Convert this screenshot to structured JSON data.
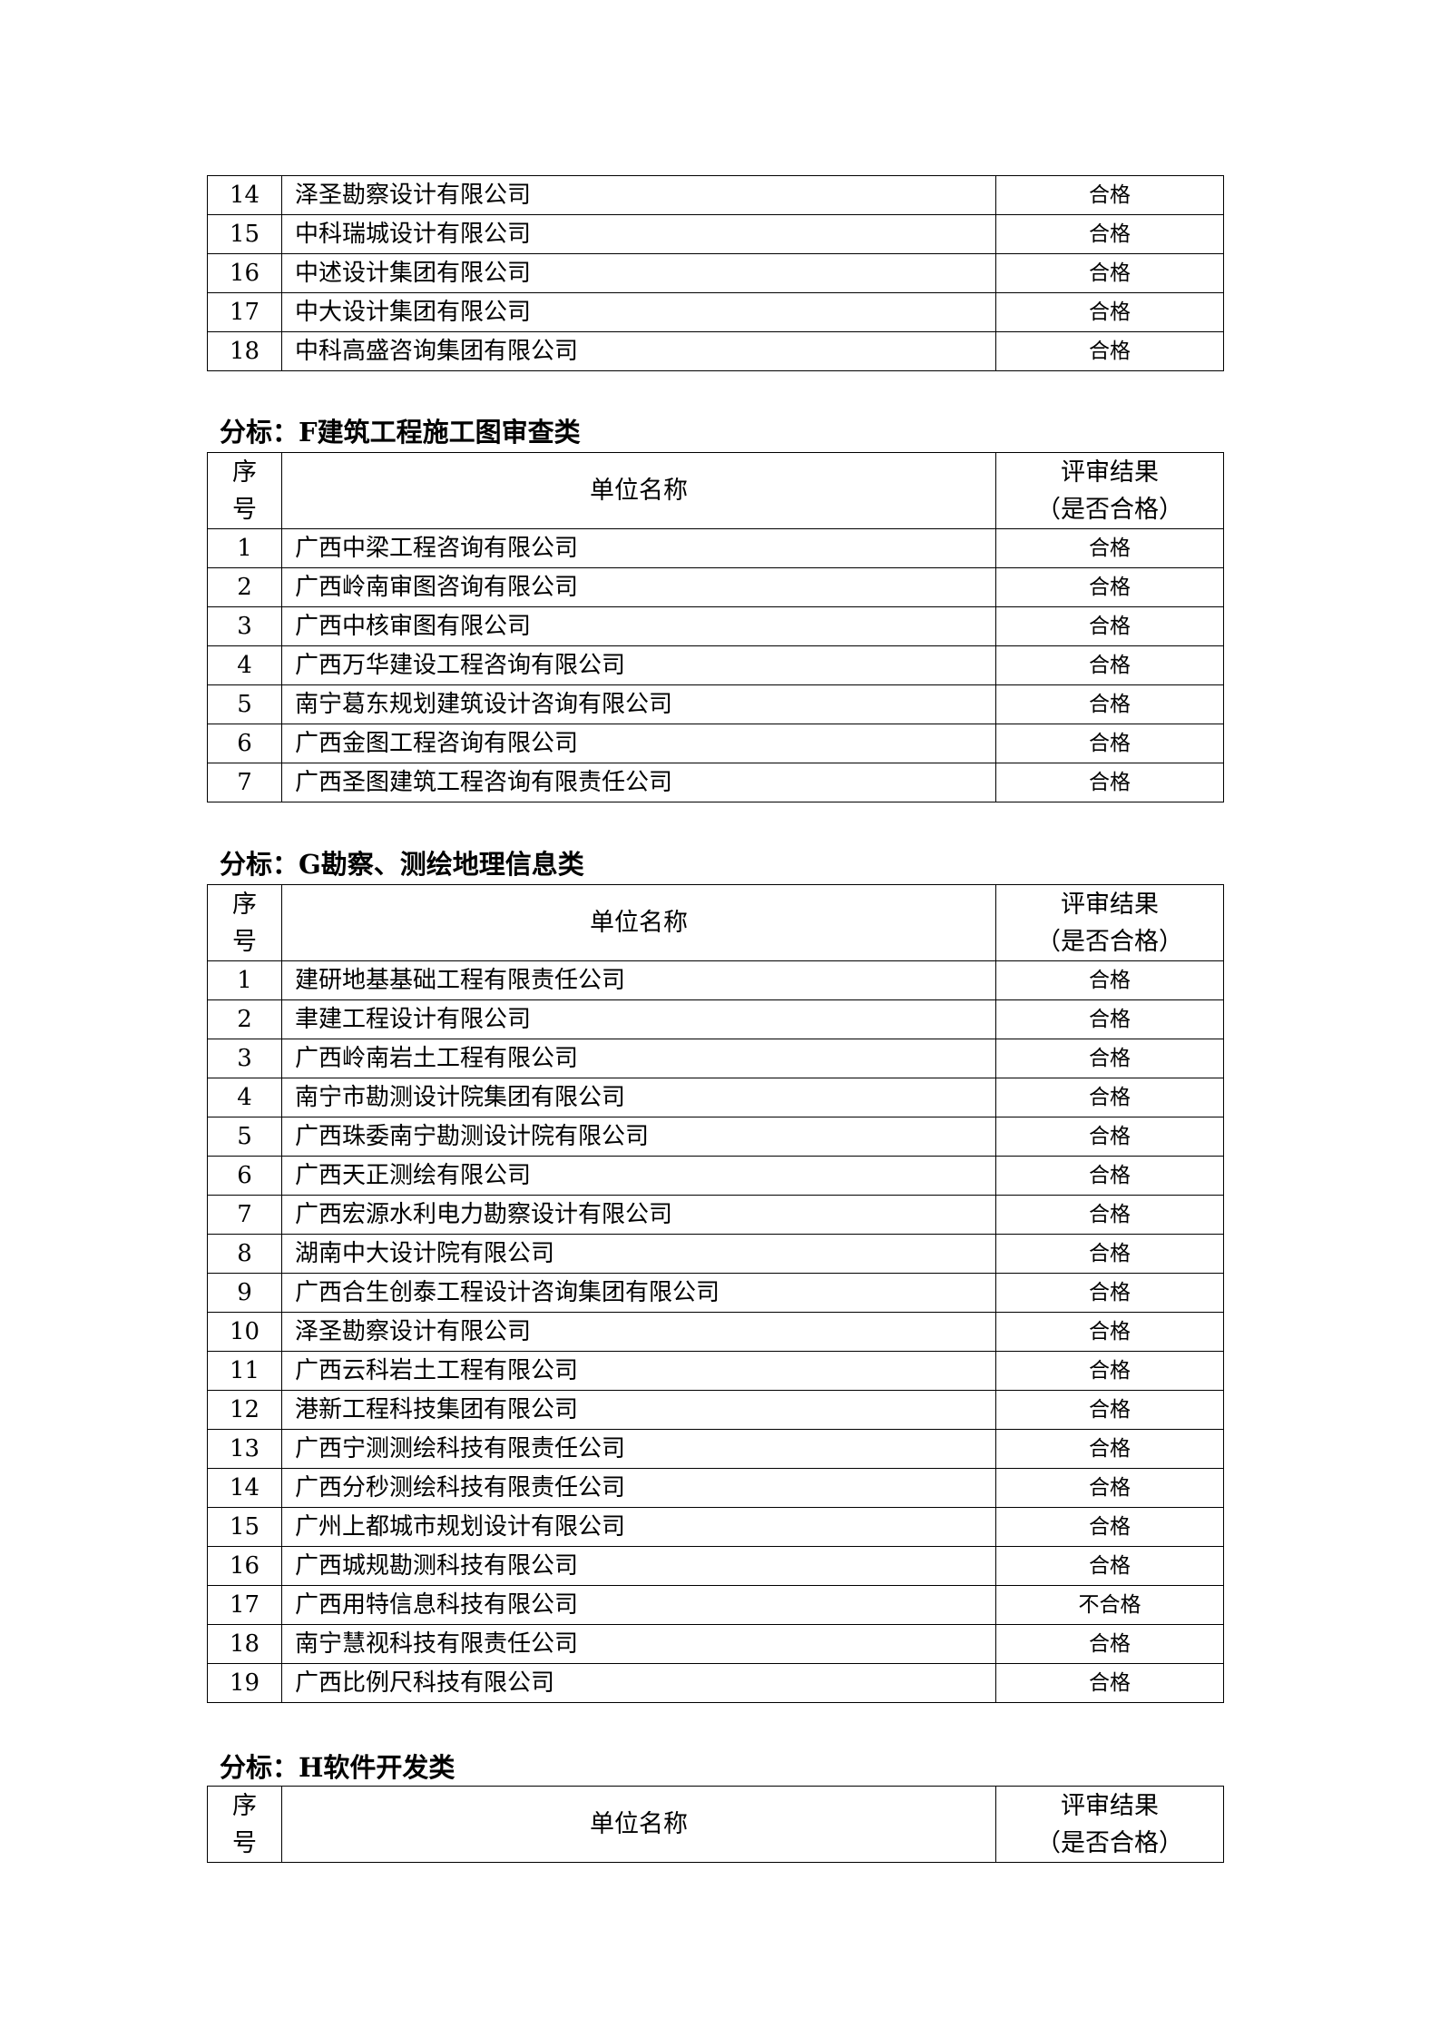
{
  "sections": [
    {
      "title": "",
      "rows": [
        {
          "no": "14",
          "name": "泽圣勘察设计有限公司",
          "result": "合格"
        },
        {
          "no": "15",
          "name": "中科瑞城设计有限公司",
          "result": "合格"
        },
        {
          "no": "16",
          "name": "中述设计集团有限公司",
          "result": "合格"
        },
        {
          "no": "17",
          "name": "中大设计集团有限公司",
          "result": "合格"
        },
        {
          "no": "18",
          "name": "中科高盛咨询集团有限公司",
          "result": "合格"
        }
      ]
    },
    {
      "title": "分标：F建筑工程施工图审查类",
      "rows": [
        {
          "no": "1",
          "name": "广西中梁工程咨询有限公司",
          "result": "合格"
        },
        {
          "no": "2",
          "name": "广西岭南审图咨询有限公司",
          "result": "合格"
        },
        {
          "no": "3",
          "name": "广西中核审图有限公司",
          "result": "合格"
        },
        {
          "no": "4",
          "name": "广西万华建设工程咨询有限公司",
          "result": "合格"
        },
        {
          "no": "5",
          "name": "南宁葛东规划建筑设计咨询有限公司",
          "result": "合格"
        },
        {
          "no": "6",
          "name": "广西金图工程咨询有限公司",
          "result": "合格"
        },
        {
          "no": "7",
          "name": "广西圣图建筑工程咨询有限责任公司",
          "result": "合格"
        }
      ]
    },
    {
      "title": "分标：G勘察、测绘地理信息类",
      "rows": [
        {
          "no": "1",
          "name": "建研地基基础工程有限责任公司",
          "result": "合格"
        },
        {
          "no": "2",
          "name": "聿建工程设计有限公司",
          "result": "合格"
        },
        {
          "no": "3",
          "name": "广西岭南岩土工程有限公司",
          "result": "合格"
        },
        {
          "no": "4",
          "name": "南宁市勘测设计院集团有限公司",
          "result": "合格"
        },
        {
          "no": "5",
          "name": "广西珠委南宁勘测设计院有限公司",
          "result": "合格"
        },
        {
          "no": "6",
          "name": "广西天正测绘有限公司",
          "result": "合格"
        },
        {
          "no": "7",
          "name": "广西宏源水利电力勘察设计有限公司",
          "result": "合格"
        },
        {
          "no": "8",
          "name": "湖南中大设计院有限公司",
          "result": "合格"
        },
        {
          "no": "9",
          "name": "广西合生创泰工程设计咨询集团有限公司",
          "result": "合格"
        },
        {
          "no": "10",
          "name": "泽圣勘察设计有限公司",
          "result": "合格"
        },
        {
          "no": "11",
          "name": "广西云科岩土工程有限公司",
          "result": "合格"
        },
        {
          "no": "12",
          "name": "港新工程科技集团有限公司",
          "result": "合格"
        },
        {
          "no": "13",
          "name": "广西宁测测绘科技有限责任公司",
          "result": "合格"
        },
        {
          "no": "14",
          "name": "广西分秒测绘科技有限责任公司",
          "result": "合格"
        },
        {
          "no": "15",
          "name": "广州上都城市规划设计有限公司",
          "result": "合格"
        },
        {
          "no": "16",
          "name": "广西城规勘测科技有限公司",
          "result": "合格"
        },
        {
          "no": "17",
          "name": "广西用特信息科技有限公司",
          "result": "不合格"
        },
        {
          "no": "18",
          "name": "南宁慧视科技有限责任公司",
          "result": "合格"
        },
        {
          "no": "19",
          "name": "广西比例尺科技有限公司",
          "result": "合格"
        }
      ]
    },
    {
      "title": "分标：H软件开发类",
      "rows": []
    }
  ],
  "header": {
    "no_line1": "序",
    "no_line2": "号",
    "name": "单位名称",
    "result_line1": "评审结果",
    "result_line2": "（是否合格）"
  }
}
